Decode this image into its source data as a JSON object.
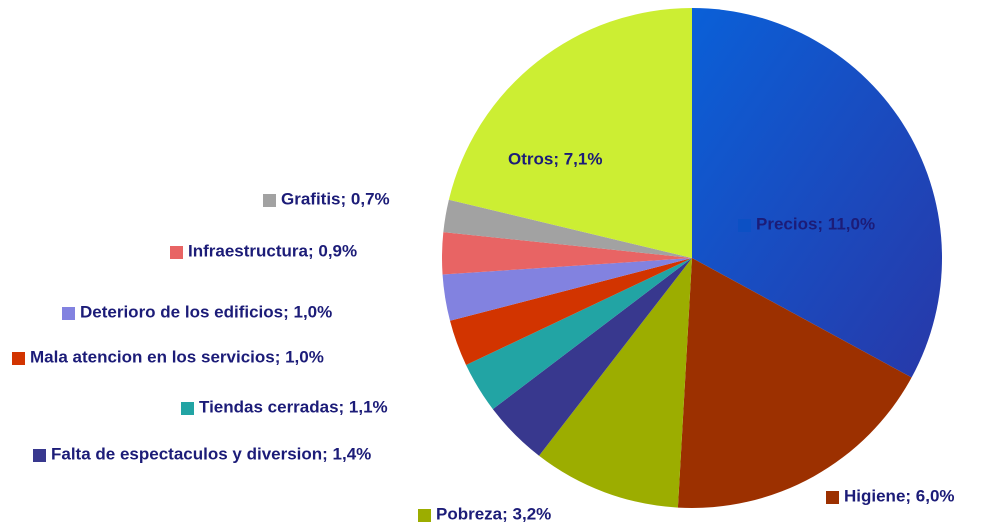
{
  "chart_data": {
    "type": "pie",
    "values": [
      11.0,
      6.0,
      3.2,
      1.4,
      1.1,
      1.0,
      1.0,
      0.9,
      0.7,
      7.1
    ],
    "value_labels": [
      "Precios; 11,0%",
      "Higiene; 6,0%",
      "Pobreza; 3,2%",
      "Falta de espectaculos y diversion; 1,4%",
      "Tiendas cerradas; 1,1%",
      "Mala atencion en los servicios; 1,0%",
      "Deterioro de los edificios; 1,0%",
      "Infraestructura; 0,9%",
      "Grafitis; 0,7%",
      "Otros; 7,1%"
    ],
    "colors": [
      "#0c50c4",
      "#9c3000",
      "#9cad00",
      "#38388e",
      "#22a4a4",
      "#d23400",
      "#8282e0",
      "#e86464",
      "#a2a2a2",
      "#ccee33"
    ]
  }
}
